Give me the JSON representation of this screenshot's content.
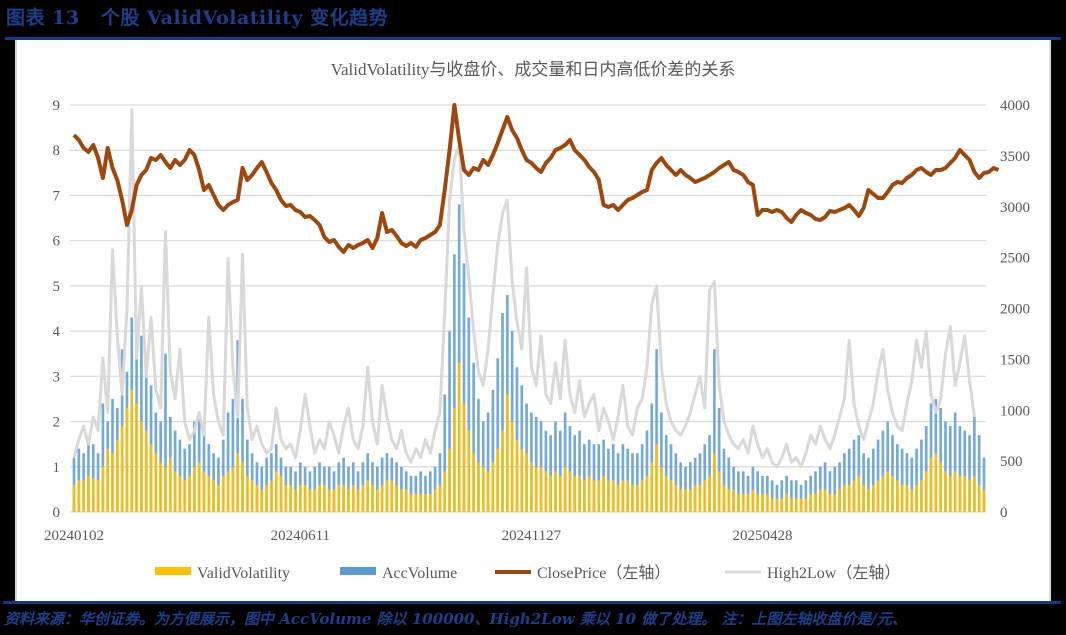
{
  "figure": {
    "label": "图表 13",
    "title": "个股 ValidVolatility 变化趋势",
    "source_note": "资料来源：华创证券。为方便展示，图中 AccVolume 除以 100000、High2Low 乘以 10 做了处理。    注：上图左轴收盘价是/元、",
    "colors": {
      "brand": "#0e3c86",
      "valid_volatility": "#ffc000",
      "acc_volume": "#5b9bd5",
      "close_price": "#9e480e",
      "high2low": "#d9d9d9"
    }
  },
  "chart_data": {
    "type": "bar+line",
    "title": "ValidVolatility与收盘价、成交量和日内高低价差的关系",
    "xlabel": "",
    "ylabel_left": "",
    "ylabel_right": "",
    "left_axis": {
      "ylim": [
        0,
        9
      ],
      "ticks": [
        "0",
        "1",
        "2",
        "3",
        "4",
        "5",
        "6",
        "7",
        "8",
        "9"
      ]
    },
    "right_axis": {
      "ylim": [
        0,
        4000
      ],
      "ticks": [
        "0",
        "500",
        "1000",
        "1500",
        "2000",
        "2500",
        "3000",
        "3500",
        "4000"
      ]
    },
    "x_tick_labels": [
      {
        "label": "20240102",
        "index": 0
      },
      {
        "label": "20240611",
        "index": 47
      },
      {
        "label": "20241127",
        "index": 95
      },
      {
        "label": "20250428",
        "index": 143
      }
    ],
    "grid": true,
    "legend_position": "bottom",
    "legend": [
      {
        "name": "ValidVolatility",
        "kind": "bar",
        "color": "#ffc000"
      },
      {
        "name": "AccVolume",
        "kind": "bar",
        "color": "#5b9bd5"
      },
      {
        "name": "ClosePrice（左轴）",
        "kind": "line",
        "color": "#9e480e"
      },
      {
        "name": "High2Low（左轴）",
        "kind": "line",
        "color": "#d9d9d9"
      }
    ],
    "n_points": 190,
    "series": [
      {
        "name": "ValidVolatility",
        "axis": "left",
        "type": "bar",
        "values": [
          0.6,
          0.7,
          0.7,
          0.8,
          0.75,
          0.7,
          1.0,
          1.4,
          1.3,
          1.6,
          1.9,
          2.3,
          2.7,
          2.4,
          2.0,
          1.8,
          1.5,
          1.3,
          1.1,
          1.0,
          1.2,
          0.9,
          0.8,
          0.7,
          0.8,
          1.0,
          1.1,
          0.9,
          0.8,
          0.7,
          0.6,
          0.8,
          0.9,
          1.0,
          1.3,
          1.1,
          0.8,
          0.7,
          0.6,
          0.5,
          0.6,
          0.7,
          0.9,
          0.8,
          0.6,
          0.6,
          0.5,
          0.6,
          0.6,
          0.5,
          0.5,
          0.6,
          0.6,
          0.5,
          0.5,
          0.6,
          0.6,
          0.5,
          0.6,
          0.5,
          0.6,
          0.7,
          0.6,
          0.5,
          0.6,
          0.7,
          0.7,
          0.6,
          0.5,
          0.5,
          0.4,
          0.4,
          0.4,
          0.4,
          0.4,
          0.5,
          0.6,
          0.9,
          1.4,
          2.3,
          3.3,
          2.4,
          1.8,
          1.3,
          1.1,
          1.0,
          0.9,
          1.1,
          1.4,
          1.8,
          2.6,
          2.0,
          1.6,
          1.4,
          1.3,
          1.1,
          1.0,
          1.0,
          0.9,
          0.8,
          0.9,
          0.8,
          1.0,
          0.9,
          0.8,
          0.8,
          0.7,
          0.8,
          0.7,
          0.7,
          0.8,
          0.7,
          0.7,
          0.6,
          0.7,
          0.7,
          0.6,
          0.6,
          0.7,
          0.8,
          1.1,
          1.5,
          1.0,
          0.8,
          0.7,
          0.6,
          0.5,
          0.5,
          0.5,
          0.6,
          0.6,
          0.7,
          0.8,
          1.3,
          0.9,
          0.6,
          0.5,
          0.5,
          0.4,
          0.4,
          0.4,
          0.5,
          0.4,
          0.4,
          0.4,
          0.3,
          0.3,
          0.3,
          0.4,
          0.3,
          0.3,
          0.3,
          0.3,
          0.4,
          0.4,
          0.5,
          0.5,
          0.4,
          0.4,
          0.5,
          0.6,
          0.6,
          0.7,
          0.8,
          0.6,
          0.5,
          0.6,
          0.7,
          0.8,
          0.9,
          0.8,
          0.7,
          0.6,
          0.6,
          0.5,
          0.6,
          0.7,
          0.9,
          1.2,
          1.3,
          1.1,
          0.9,
          0.8,
          0.9,
          0.8,
          0.8,
          0.7,
          0.8,
          0.6,
          0.5
        ]
      },
      {
        "name": "AccVolume",
        "axis": "left",
        "type": "bar",
        "values": [
          1.2,
          1.4,
          1.3,
          1.6,
          1.5,
          1.3,
          2.4,
          2.0,
          2.5,
          2.3,
          3.6,
          3.1,
          4.3,
          4.2,
          3.9,
          3.0,
          2.8,
          2.2,
          2.0,
          3.5,
          2.1,
          1.8,
          1.6,
          1.4,
          1.5,
          2.0,
          2.1,
          1.7,
          1.5,
          1.3,
          1.2,
          1.6,
          2.2,
          2.5,
          3.8,
          2.5,
          1.6,
          1.3,
          1.1,
          1.0,
          1.2,
          1.3,
          1.5,
          1.2,
          1.0,
          1.0,
          0.9,
          1.1,
          1.0,
          0.9,
          1.0,
          1.1,
          1.0,
          1.0,
          0.9,
          1.1,
          1.2,
          1.0,
          1.1,
          0.9,
          1.1,
          1.3,
          1.1,
          1.0,
          1.2,
          1.3,
          1.2,
          1.1,
          1.0,
          0.9,
          0.8,
          0.8,
          0.9,
          0.8,
          0.9,
          1.0,
          1.3,
          2.6,
          4.0,
          5.7,
          6.8,
          5.5,
          4.3,
          3.3,
          2.5,
          2.0,
          2.2,
          2.7,
          3.4,
          4.4,
          4.8,
          4.0,
          3.2,
          2.8,
          2.4,
          2.2,
          2.1,
          2.0,
          1.8,
          1.7,
          2.0,
          1.8,
          2.2,
          1.9,
          1.7,
          1.8,
          1.5,
          1.6,
          1.5,
          1.5,
          1.6,
          1.4,
          1.5,
          1.3,
          1.5,
          1.4,
          1.3,
          1.3,
          1.5,
          1.8,
          2.4,
          3.6,
          2.2,
          1.7,
          1.5,
          1.3,
          1.1,
          1.0,
          1.1,
          1.2,
          1.3,
          1.5,
          1.7,
          3.6,
          2.3,
          1.4,
          1.2,
          1.0,
          0.9,
          0.9,
          0.8,
          1.0,
          0.9,
          0.8,
          0.8,
          0.7,
          0.6,
          0.7,
          0.8,
          0.7,
          0.7,
          0.6,
          0.7,
          0.8,
          0.9,
          1.0,
          1.1,
          0.9,
          1.0,
          1.1,
          1.3,
          1.4,
          1.6,
          1.7,
          1.3,
          1.2,
          1.4,
          1.6,
          1.8,
          2.0,
          1.7,
          1.5,
          1.4,
          1.3,
          1.2,
          1.4,
          1.6,
          1.9,
          2.4,
          2.5,
          2.3,
          2.0,
          1.9,
          2.2,
          1.9,
          1.8,
          1.7,
          2.1,
          1.7,
          1.2
        ]
      },
      {
        "name": "ClosePrice（左轴）",
        "axis": "right",
        "type": "line",
        "values": [
          3705,
          3656,
          3577,
          3538,
          3607,
          3479,
          3283,
          3577,
          3381,
          3263,
          3066,
          2821,
          2968,
          3214,
          3312,
          3361,
          3479,
          3459,
          3509,
          3440,
          3381,
          3459,
          3410,
          3459,
          3558,
          3509,
          3361,
          3165,
          3214,
          3115,
          3017,
          2968,
          3017,
          3047,
          3066,
          3381,
          3263,
          3312,
          3381,
          3440,
          3342,
          3233,
          3165,
          3066,
          3007,
          3017,
          2968,
          2948,
          2899,
          2909,
          2870,
          2821,
          2703,
          2654,
          2673,
          2604,
          2555,
          2624,
          2595,
          2624,
          2644,
          2673,
          2595,
          2693,
          2939,
          2752,
          2772,
          2713,
          2644,
          2614,
          2644,
          2604,
          2673,
          2693,
          2722,
          2752,
          2821,
          3165,
          3558,
          4000,
          3656,
          3361,
          3312,
          3381,
          3361,
          3459,
          3410,
          3509,
          3627,
          3754,
          3882,
          3754,
          3676,
          3558,
          3459,
          3430,
          3381,
          3342,
          3430,
          3479,
          3558,
          3577,
          3607,
          3656,
          3558,
          3509,
          3459,
          3391,
          3342,
          3263,
          3017,
          2998,
          3017,
          2968,
          3017,
          3066,
          3086,
          3115,
          3145,
          3165,
          3361,
          3430,
          3479,
          3410,
          3361,
          3312,
          3361,
          3312,
          3283,
          3243,
          3263,
          3283,
          3312,
          3342,
          3381,
          3410,
          3440,
          3361,
          3342,
          3312,
          3243,
          3214,
          2919,
          2968,
          2968,
          2948,
          2968,
          2948,
          2889,
          2850,
          2919,
          2968,
          2939,
          2919,
          2880,
          2870,
          2899,
          2958,
          2948,
          2968,
          2988,
          3017,
          2968,
          2909,
          2988,
          3165,
          3125,
          3086,
          3086,
          3145,
          3214,
          3243,
          3233,
          3283,
          3312,
          3361,
          3381,
          3342,
          3312,
          3361,
          3361,
          3381,
          3430,
          3479,
          3558,
          3509,
          3459,
          3342,
          3283,
          3332,
          3342,
          3381,
          3361
        ]
      },
      {
        "name": "High2Low（左轴）",
        "axis": "left",
        "type": "line",
        "values": [
          1.2,
          1.6,
          1.9,
          1.5,
          2.1,
          1.8,
          3.4,
          2.2,
          5.8,
          3.9,
          2.6,
          4.5,
          8.9,
          3.4,
          5.0,
          3.0,
          4.3,
          2.7,
          2.3,
          6.2,
          3.1,
          2.5,
          3.6,
          2.0,
          1.6,
          1.8,
          2.2,
          1.7,
          4.3,
          2.6,
          2.0,
          1.7,
          5.6,
          3.2,
          2.1,
          5.7,
          2.3,
          1.6,
          1.9,
          1.5,
          1.3,
          1.4,
          2.3,
          1.6,
          1.4,
          1.5,
          1.2,
          1.8,
          2.6,
          1.9,
          1.3,
          1.6,
          1.4,
          2.0,
          1.7,
          1.3,
          1.9,
          2.3,
          1.6,
          1.4,
          1.9,
          3.2,
          2.0,
          1.5,
          2.8,
          2.1,
          1.6,
          1.4,
          1.8,
          1.3,
          1.1,
          1.4,
          1.2,
          1.6,
          1.3,
          1.8,
          2.2,
          4.4,
          6.9,
          7.8,
          8.1,
          6.2,
          5.2,
          4.0,
          3.1,
          2.8,
          3.6,
          4.8,
          5.9,
          6.6,
          6.9,
          5.1,
          4.2,
          3.6,
          5.4,
          3.2,
          2.8,
          3.9,
          2.6,
          2.4,
          3.3,
          2.5,
          3.8,
          2.6,
          2.2,
          2.9,
          2.1,
          2.4,
          2.6,
          1.8,
          2.3,
          2.0,
          1.6,
          2.1,
          2.8,
          1.9,
          1.7,
          2.3,
          2.5,
          3.2,
          4.6,
          5.0,
          3.2,
          2.4,
          2.0,
          1.8,
          1.7,
          1.9,
          2.2,
          2.6,
          3.0,
          2.3,
          4.9,
          5.1,
          2.8,
          2.0,
          1.7,
          1.5,
          1.4,
          1.6,
          1.3,
          1.9,
          1.5,
          1.2,
          1.4,
          1.1,
          1.0,
          1.2,
          1.5,
          1.1,
          1.2,
          1.0,
          1.3,
          1.7,
          1.5,
          1.9,
          1.6,
          1.4,
          1.7,
          2.1,
          2.5,
          3.8,
          2.4,
          1.9,
          1.6,
          2.0,
          2.4,
          3.1,
          3.6,
          2.7,
          2.2,
          1.9,
          1.8,
          2.4,
          2.9,
          3.8,
          3.2,
          4.0,
          2.6,
          2.2,
          2.5,
          3.5,
          4.1,
          2.8,
          3.3,
          3.9,
          2.9,
          2.1
        ]
      }
    ]
  }
}
